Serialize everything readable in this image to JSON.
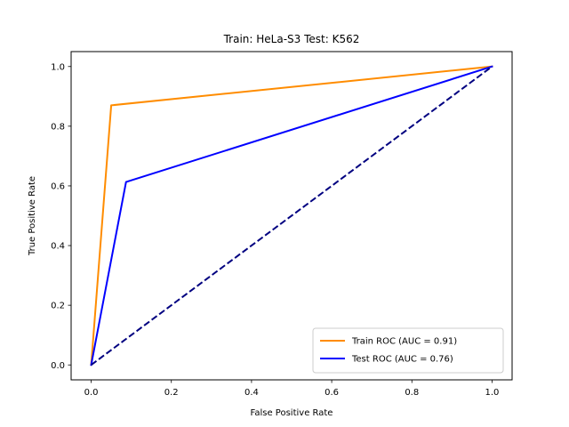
{
  "chart_data": {
    "type": "line",
    "title": "Train: HeLa-S3   Test: K562",
    "xlabel": "False Positive Rate",
    "ylabel": "True Positive Rate",
    "xlim": [
      -0.05,
      1.05
    ],
    "ylim": [
      -0.05,
      1.05
    ],
    "xticks": [
      0.0,
      0.2,
      0.4,
      0.6,
      0.8,
      1.0
    ],
    "yticks": [
      0.0,
      0.2,
      0.4,
      0.6,
      0.8,
      1.0
    ],
    "xtick_labels": [
      "0.0",
      "0.2",
      "0.4",
      "0.6",
      "0.8",
      "1.0"
    ],
    "ytick_labels": [
      "0.0",
      "0.2",
      "0.4",
      "0.6",
      "0.8",
      "1.0"
    ],
    "grid": false,
    "legend_position": "lower-right",
    "series": [
      {
        "name": "Train ROC (AUC = 0.91)",
        "color": "#ff8c00",
        "style": "solid",
        "x": [
          0.0,
          0.05,
          1.0
        ],
        "y": [
          0.0,
          0.87,
          1.0
        ]
      },
      {
        "name": "Test ROC (AUC = 0.76)",
        "color": "#0000ff",
        "style": "solid",
        "x": [
          0.0,
          0.087,
          1.0
        ],
        "y": [
          0.0,
          0.613,
          1.0
        ]
      },
      {
        "color": "#000080",
        "style": "dashed",
        "x": [
          0.0,
          1.0
        ],
        "y": [
          0.0,
          1.0
        ]
      }
    ]
  }
}
